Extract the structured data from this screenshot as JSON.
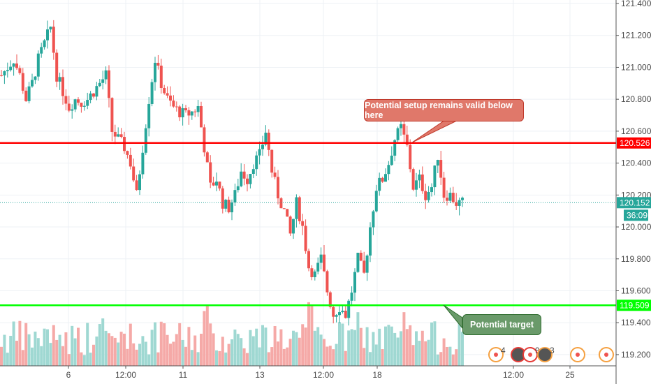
{
  "chart_data": {
    "type": "candlestick",
    "x_tick_labels": [
      "6",
      "12:00",
      "11",
      "13",
      "12:00",
      "18",
      "12:00",
      "25"
    ],
    "y_tick_labels": [
      "121.400",
      "121.200",
      "121.000",
      "120.800",
      "120.600",
      "120.400",
      "120.200",
      "120.000",
      "119.800",
      "119.600",
      "119.400",
      "119.200"
    ],
    "ylim": [
      119.2,
      121.4
    ],
    "approx_closes": [
      120.95,
      121.0,
      121.05,
      120.95,
      120.8,
      120.9,
      121.05,
      121.15,
      121.25,
      120.95,
      120.85,
      120.75,
      120.8,
      120.78,
      120.8,
      120.85,
      120.9,
      120.95,
      120.6,
      120.55,
      120.5,
      120.4,
      120.2,
      120.5,
      120.8,
      121.05,
      120.9,
      120.8,
      120.75,
      120.72,
      120.7,
      120.72,
      120.75,
      120.5,
      120.25,
      120.3,
      120.15,
      120.12,
      120.2,
      120.35,
      120.3,
      120.4,
      120.45,
      120.6,
      120.35,
      120.2,
      120.1,
      119.95,
      120.15,
      120.0,
      119.75,
      119.7,
      119.8,
      119.6,
      119.45,
      119.5,
      119.45,
      119.6,
      119.8,
      119.7,
      120.0,
      120.25,
      120.3,
      120.4,
      120.55,
      120.62,
      120.5,
      120.25,
      120.3,
      120.2,
      120.25,
      120.45,
      120.2,
      120.2,
      120.15,
      120.15
    ],
    "levels": {
      "resistance": "120.526",
      "support": "119.509",
      "last_price": "120.152",
      "countdown": "36:09"
    },
    "colors": {
      "up": "#26a69a",
      "down": "#ef5350",
      "resistance": "#ff0000",
      "support": "#00ff00",
      "last": "#26a69a"
    },
    "annotations": {
      "setup": "Potential setup remains valid below here",
      "target": "Potential target"
    },
    "events": [
      {
        "count": "4"
      },
      {
        "count": ""
      },
      {
        "count": "9"
      },
      {
        "count": "3"
      },
      {
        "count": ""
      },
      {
        "count": ""
      }
    ]
  }
}
